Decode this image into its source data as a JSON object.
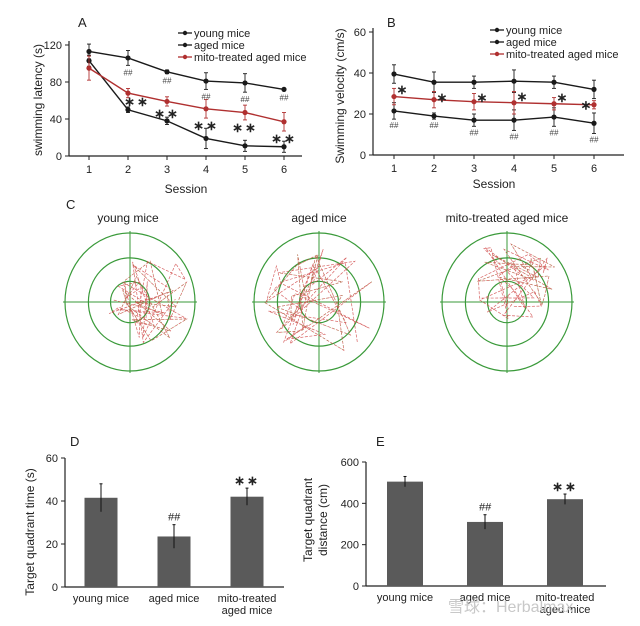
{
  "colors": {
    "young": "#1a1a1a",
    "aged": "#1a1a1a",
    "mito": "#b03030",
    "bar": "#5a5a5a",
    "pool": "#3a9a3a",
    "path_red": "#d04848",
    "path_green": "#7a9a3a"
  },
  "chart_data": [
    {
      "panel": "A",
      "type": "line",
      "xlabel": "Session",
      "ylabel": "swimming latency (s)",
      "x": [
        1,
        2,
        3,
        4,
        5,
        6
      ],
      "xticks": [
        "1",
        "2",
        "3",
        "4",
        "5",
        "6"
      ],
      "ylim": [
        0,
        120
      ],
      "yticks": [
        "0",
        "40",
        "80",
        "120"
      ],
      "legend_position": "top-right",
      "series": [
        {
          "name": "young mice",
          "values": [
            103,
            50,
            38,
            19,
            11,
            10
          ],
          "errors": [
            6,
            3,
            4,
            11,
            6,
            6
          ],
          "marks": [
            "",
            "",
            "",
            "",
            "",
            ""
          ]
        },
        {
          "name": "aged mice",
          "values": [
            113,
            106,
            91,
            81,
            79,
            72
          ],
          "errors": [
            8,
            8,
            2,
            9,
            10,
            1
          ],
          "marks": [
            "",
            "##",
            "##",
            "##",
            "##",
            "##"
          ]
        },
        {
          "name": "mito-treated aged mice",
          "values": [
            95,
            68,
            59,
            51,
            47,
            37
          ],
          "errors": [
            13,
            5,
            5,
            10,
            8,
            10
          ],
          "marks": [
            "",
            "**",
            "**",
            "**",
            "**",
            "**"
          ]
        }
      ]
    },
    {
      "panel": "B",
      "type": "line",
      "xlabel": "Session",
      "ylabel": "Swimming velocity (cm/s)",
      "x": [
        1,
        2,
        3,
        4,
        5,
        6
      ],
      "xticks": [
        "1",
        "2",
        "3",
        "4",
        "5",
        "6"
      ],
      "ylim": [
        0,
        60
      ],
      "yticks": [
        "0",
        "20",
        "40",
        "60"
      ],
      "legend_position": "top-right",
      "series": [
        {
          "name": "young mice",
          "values": [
            39.5,
            35.5,
            35.5,
            36,
            35.5,
            32
          ],
          "errors": [
            4.5,
            5,
            3,
            5.5,
            3,
            4.5
          ],
          "marks": [
            "*",
            "*",
            "*",
            "*",
            "*",
            "*"
          ]
        },
        {
          "name": "aged mice",
          "values": [
            21.5,
            19,
            17,
            17,
            18.5,
            15.5
          ],
          "errors": [
            4,
            1.5,
            3,
            5,
            4.5,
            5
          ],
          "marks": [
            "##",
            "##",
            "##",
            "##",
            "##",
            "##"
          ]
        },
        {
          "name": "mito-treated aged mice",
          "values": [
            28.5,
            27,
            26,
            25.5,
            25,
            24.5
          ],
          "errors": [
            4,
            4,
            4,
            5.5,
            3,
            2
          ],
          "marks": [
            "",
            "",
            "",
            "",
            "",
            ""
          ]
        }
      ]
    },
    {
      "panel": "D",
      "type": "bar",
      "xlabel": "",
      "ylabel": "Target quadrant time (s)",
      "categories": [
        "young mice",
        "aged mice",
        "mito-treated aged mice"
      ],
      "category_lines": [
        [
          "young mice"
        ],
        [
          "aged mice"
        ],
        [
          "mito-treated",
          "aged mice"
        ]
      ],
      "values": [
        41.5,
        23.5,
        42
      ],
      "errors": [
        6.5,
        5.5,
        4
      ],
      "marks": [
        "",
        "##",
        "**"
      ],
      "ylim": [
        0,
        60
      ],
      "yticks": [
        "0",
        "20",
        "40",
        "60"
      ]
    },
    {
      "panel": "E",
      "type": "bar",
      "xlabel": "",
      "ylabel_lines": [
        "Target quadrant",
        "distance (cm)"
      ],
      "categories": [
        "young mice",
        "aged mice",
        "mito-treated aged mice"
      ],
      "category_lines": [
        [
          "young mice"
        ],
        [
          "aged mice"
        ],
        [
          "mito-treated",
          "aged mice"
        ]
      ],
      "values": [
        505,
        310,
        420
      ],
      "errors": [
        25,
        35,
        25
      ],
      "marks": [
        "",
        "##",
        "**"
      ],
      "ylim": [
        0,
        600
      ],
      "yticks": [
        "0",
        "200",
        "400",
        "600"
      ]
    }
  ],
  "panel_c": {
    "label": "C",
    "mazes": [
      {
        "title": "young mice"
      },
      {
        "title": "aged mice"
      },
      {
        "title": "mito-treated aged mice"
      }
    ]
  },
  "watermark": "雪球：Herbalmax"
}
